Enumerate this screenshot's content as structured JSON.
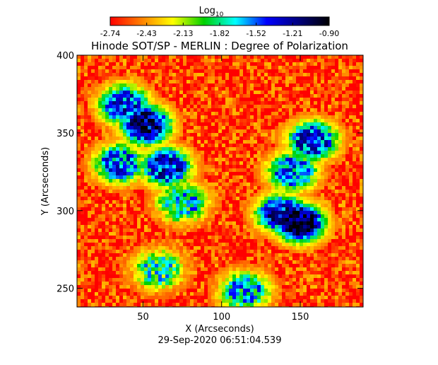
{
  "chart_data": {
    "type": "heatmap",
    "title": "Hinode SOT/SP - MERLIN : Degree of Polarization",
    "xlabel": "X (Arcseconds)",
    "ylabel": "Y (Arcseconds)",
    "timestamp": "29-Sep-2020 06:51:04.539",
    "xlim": [
      8,
      190
    ],
    "ylim": [
      238,
      400
    ],
    "x_ticks": [
      50,
      100,
      150
    ],
    "y_ticks": [
      250,
      300,
      350,
      400
    ],
    "colorbar": {
      "label": "Log",
      "label_subscript": "10",
      "min": -2.74,
      "max": -0.9,
      "ticks": [
        "-2.74",
        "-2.43",
        "-2.13",
        "-1.82",
        "-1.52",
        "-1.21",
        "-0.90"
      ],
      "colormap": [
        "#ff0000",
        "#ff8000",
        "#ffff00",
        "#00d000",
        "#00ffff",
        "#0000ff",
        "#000080",
        "#000000"
      ]
    },
    "grid": false,
    "background_level": -2.62,
    "regions": [
      {
        "name": "upper-left network patch",
        "x": 52,
        "y": 355,
        "level": -1.2
      },
      {
        "name": "upper-left network arc",
        "x": 38,
        "y": 368,
        "level": -1.45
      },
      {
        "name": "left lower extension",
        "x": 65,
        "y": 328,
        "level": -1.4
      },
      {
        "name": "left mid branch",
        "x": 35,
        "y": 330,
        "level": -1.55
      },
      {
        "name": "central connector",
        "x": 75,
        "y": 305,
        "level": -1.75
      },
      {
        "name": "right network upper",
        "x": 158,
        "y": 345,
        "level": -1.45
      },
      {
        "name": "right network lower core",
        "x": 150,
        "y": 292,
        "level": -1.1
      },
      {
        "name": "right network lower",
        "x": 138,
        "y": 298,
        "level": -1.35
      },
      {
        "name": "right vertical arm",
        "x": 145,
        "y": 325,
        "level": -1.55
      },
      {
        "name": "bottom centre streak",
        "x": 115,
        "y": 248,
        "level": -1.7
      },
      {
        "name": "bottom left streak",
        "x": 60,
        "y": 262,
        "level": -1.85
      }
    ]
  }
}
